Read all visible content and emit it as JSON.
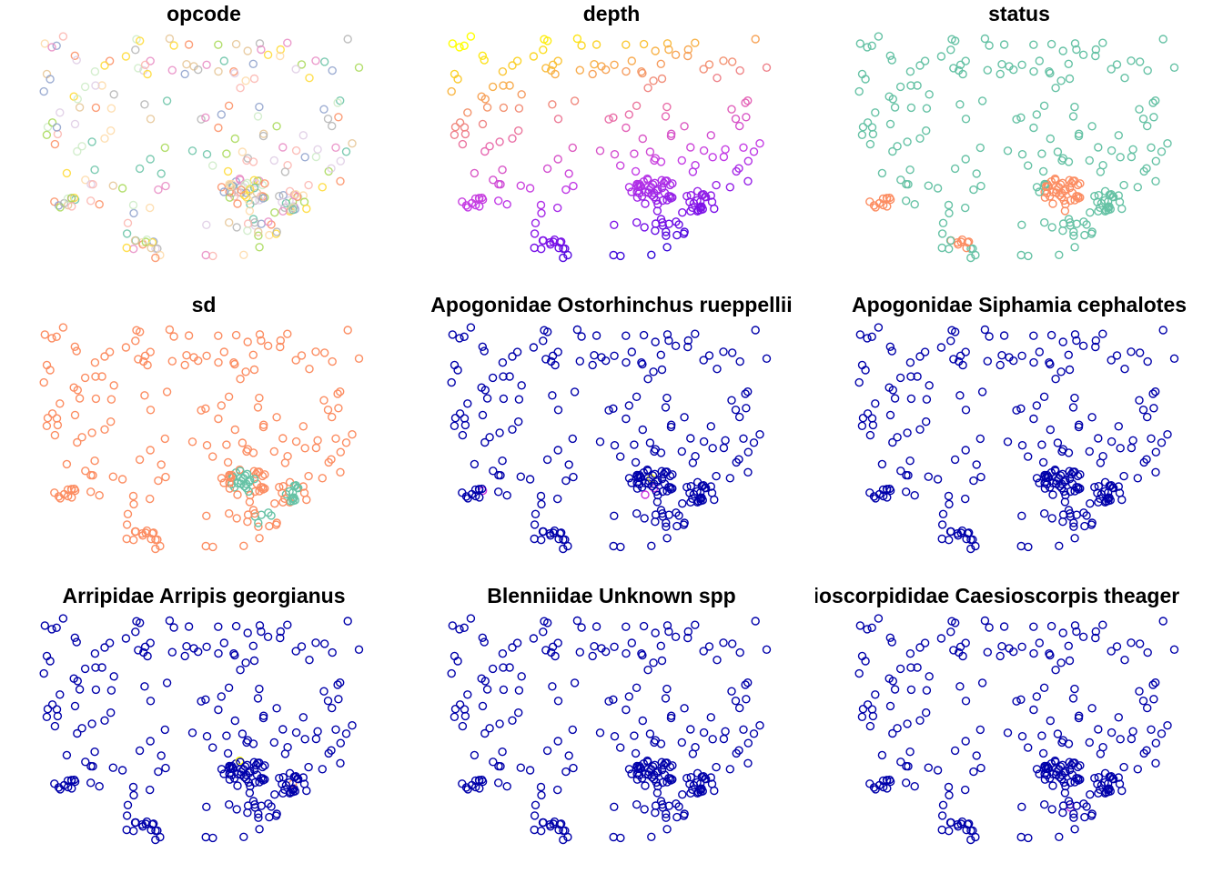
{
  "chart_data": [
    {
      "type": "scatter",
      "title": "opcode",
      "coloring": "opcode"
    },
    {
      "type": "scatter",
      "title": "depth",
      "coloring": "depth"
    },
    {
      "type": "scatter",
      "title": "status",
      "coloring": "status"
    },
    {
      "type": "scatter",
      "title": "sd",
      "coloring": "sd"
    },
    {
      "type": "scatter",
      "title": "Apogonidae Ostorhinchus rueppellii",
      "coloring": "rare",
      "highlights": [
        {
          "i": 10,
          "color": "#ffff00"
        },
        {
          "i": 5,
          "color": "#cc33dd"
        },
        {
          "i": 25,
          "color": "#cc33dd"
        },
        {
          "i": 60,
          "color": "#cc33dd"
        }
      ]
    },
    {
      "type": "scatter",
      "title": "Apogonidae Siphamia cephalotes",
      "coloring": "rare",
      "highlights": []
    },
    {
      "type": "scatter",
      "title": "Arripidae Arripis georgianus",
      "coloring": "rare",
      "highlights": [
        {
          "i": 15,
          "color": "#ffff00"
        },
        {
          "i": 40,
          "color": "#f08a60"
        }
      ]
    },
    {
      "type": "scatter",
      "title": "Blenniidae Unknown spp",
      "coloring": "rare",
      "highlights": []
    },
    {
      "type": "scatter",
      "title": "esioscorpididae Caesioscorpis theager",
      "coloring": "rare",
      "highlights": [
        {
          "i": 70,
          "color": "#cc33dd"
        }
      ]
    }
  ],
  "colors": {
    "base_blue": "#0000aa",
    "status_green": "#66c2a5",
    "status_orange": "#fc8d62",
    "depth_ramp": [
      "#ffff00",
      "#f7a35a",
      "#e86ab0",
      "#c43ce6",
      "#7a10e8",
      "#0000cc"
    ],
    "opcode_palette": [
      "#66c2a5",
      "#fc8d62",
      "#8da0cb",
      "#e78ac3",
      "#a6d854",
      "#ffd92f",
      "#e5c494",
      "#b3b3b3",
      "#fbb4ae",
      "#ccebc5",
      "#decbe4",
      "#fed9a6"
    ]
  }
}
